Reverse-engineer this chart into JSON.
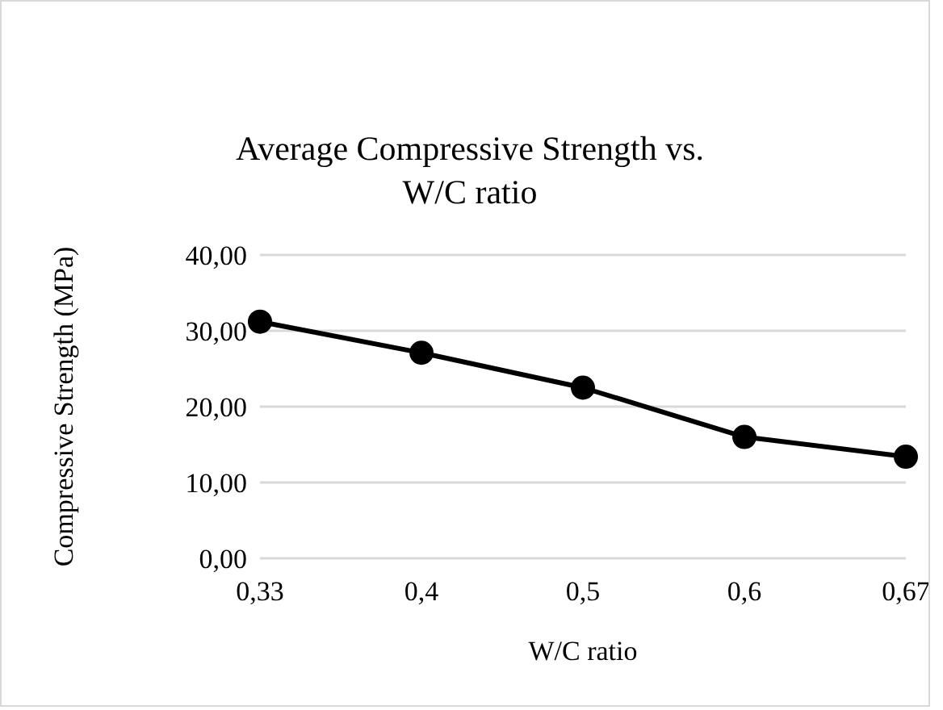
{
  "chart_data": {
    "type": "line",
    "title": "Average Compressive Strength vs. W/C ratio",
    "xlabel": "W/C ratio",
    "ylabel": "Compressive Strength (MPa)",
    "categories": [
      "0,33",
      "0,4",
      "0,5",
      "0,6",
      "0,67"
    ],
    "series": [
      {
        "color": "#000000",
        "values": [
          31.2,
          27.1,
          22.5,
          16.0,
          13.4
        ]
      }
    ],
    "ylim": [
      0,
      40
    ],
    "yticks": [
      {
        "value": 0,
        "label": "0,00"
      },
      {
        "value": 10,
        "label": "10,00"
      },
      {
        "value": 20,
        "label": "20,00"
      },
      {
        "value": 30,
        "label": "30,00"
      },
      {
        "value": 40,
        "label": "40,00"
      }
    ],
    "grid": "y",
    "marker": "circle",
    "line_style": "solid"
  }
}
